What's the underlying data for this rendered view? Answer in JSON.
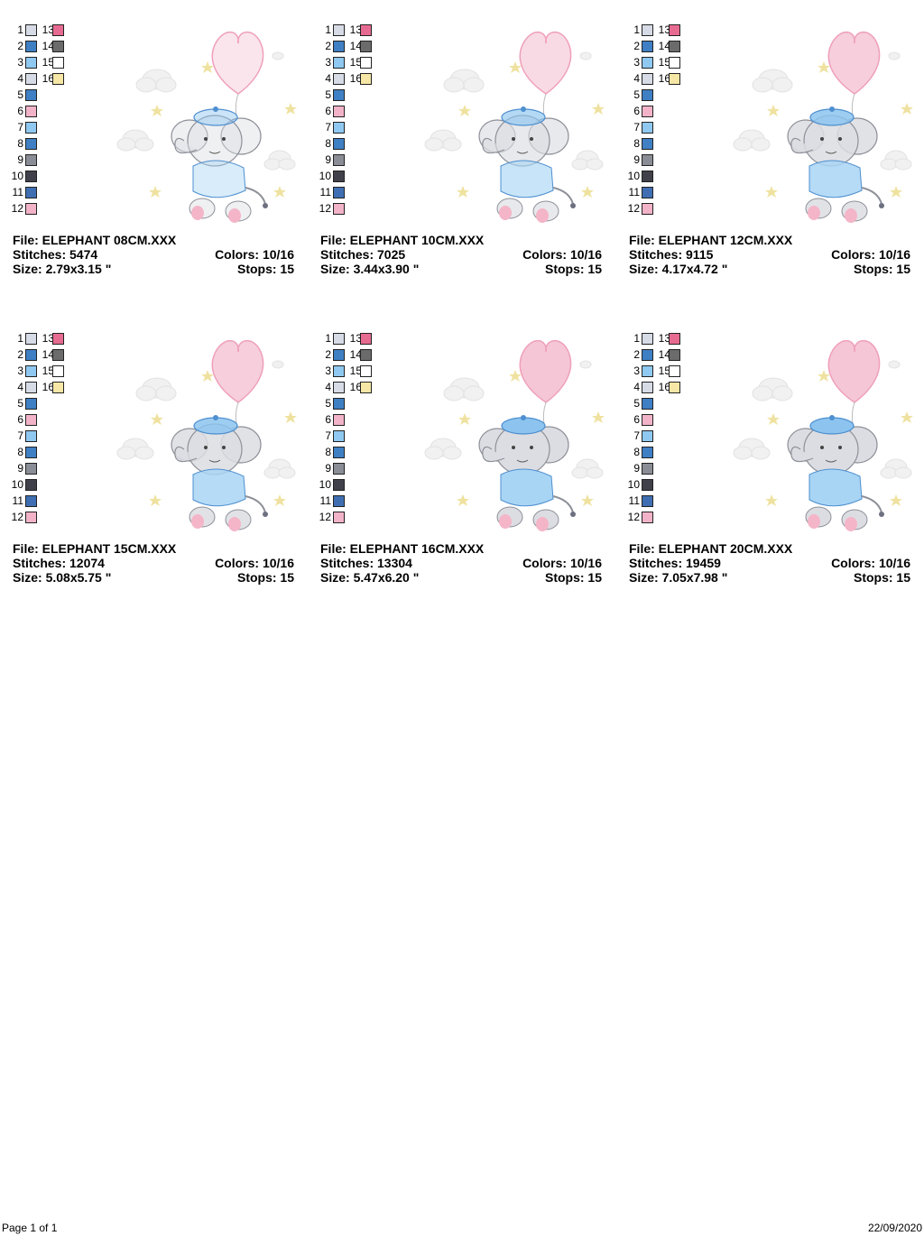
{
  "palette": {
    "rows": [
      {
        "n": "1",
        "color": "#d6dbe6",
        "n2": "13",
        "color2": "#e76b91"
      },
      {
        "n": "2",
        "color": "#3f7fc4",
        "n2": "14",
        "color2": "#6b6b6b"
      },
      {
        "n": "3",
        "color": "#8fc8f0",
        "n2": "15",
        "color2": "#ffffff"
      },
      {
        "n": "4",
        "color": "#d6dbe6",
        "n2": "16",
        "color2": "#f6e7a6"
      },
      {
        "n": "5",
        "color": "#3f7fc4"
      },
      {
        "n": "6",
        "color": "#f2b3c8"
      },
      {
        "n": "7",
        "color": "#8fc8f0"
      },
      {
        "n": "8",
        "color": "#3f7fc4"
      },
      {
        "n": "9",
        "color": "#8a8d95"
      },
      {
        "n": "10",
        "color": "#40404a"
      },
      {
        "n": "11",
        "color": "#3f6fb2"
      },
      {
        "n": "12",
        "color": "#f2b3c8"
      }
    ]
  },
  "designs": [
    {
      "file": "File: ELEPHANT 08CM.XXX",
      "stitches": "Stitches: 5474",
      "colors": "Colors: 10/16",
      "size": "Size: 2.79x3.15 \"",
      "stops": "Stops: 15",
      "detail": "sketch"
    },
    {
      "file": "File: ELEPHANT 10CM.XXX",
      "stitches": "Stitches: 7025",
      "colors": "Colors: 10/16",
      "size": "Size: 3.44x3.90 \"",
      "stops": "Stops: 15",
      "detail": "light"
    },
    {
      "file": "File: ELEPHANT 12CM.XXX",
      "stitches": "Stitches: 9115",
      "colors": "Colors: 10/16",
      "size": "Size: 4.17x4.72 \"",
      "stops": "Stops: 15",
      "detail": "medium"
    },
    {
      "file": "File: ELEPHANT 15CM.XXX",
      "stitches": "Stitches: 12074",
      "colors": "Colors: 10/16",
      "size": "Size: 5.08x5.75 \"",
      "stops": "Stops: 15",
      "detail": "medium"
    },
    {
      "file": "File: ELEPHANT 16CM.XXX",
      "stitches": "Stitches: 13304",
      "colors": "Colors: 10/16",
      "size": "Size: 5.47x6.20 \"",
      "stops": "Stops: 15",
      "detail": "full"
    },
    {
      "file": "File: ELEPHANT 20CM.XXX",
      "stitches": "Stitches: 19459",
      "colors": "Colors: 10/16",
      "size": "Size: 7.05x7.98 \"",
      "stops": "Stops: 15",
      "detail": "full"
    }
  ],
  "colors": {
    "balloon": "#f5c6d6",
    "balloon_edge": "#ef9fbb",
    "hat": "#8cc4ef",
    "hat_edge": "#4e8fd0",
    "shirt": "#a9d5f5",
    "body": "#dcdde2",
    "body_edge": "#8d9098",
    "feet": "#f4b5c8",
    "cloud": "#f1f1f1",
    "star": "#efe2a0"
  },
  "footer": {
    "page": "Page 1 of 1",
    "date": "22/09/2020"
  }
}
